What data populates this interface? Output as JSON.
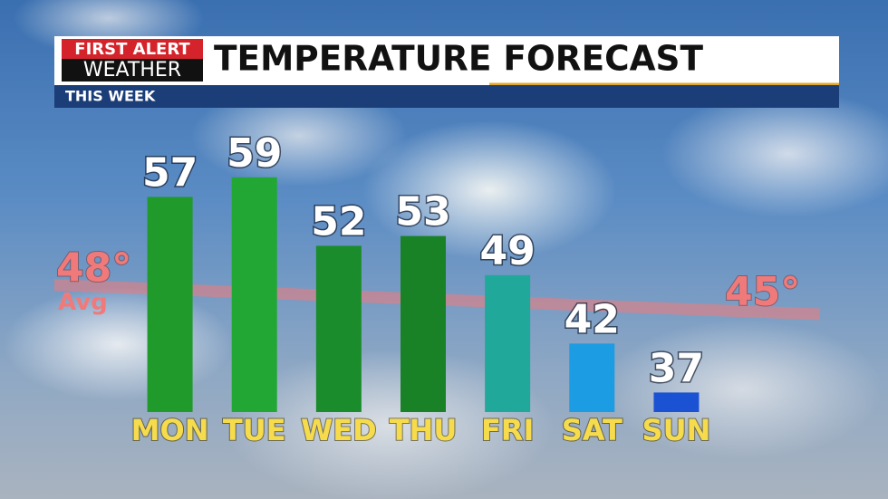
{
  "header": {
    "logo_top": "FIRST ALERT",
    "logo_bottom": "WEATHER",
    "title": "TEMPERATURE FORECAST",
    "subtitle": "THIS WEEK"
  },
  "chart_data": {
    "type": "bar",
    "categories": [
      "MON",
      "TUE",
      "WED",
      "THU",
      "FRI",
      "SAT",
      "SUN"
    ],
    "values": [
      57,
      59,
      52,
      53,
      49,
      42,
      37
    ],
    "colors": [
      "#1f9a2b",
      "#22a734",
      "#1b8c2b",
      "#1a8226",
      "#20a89a",
      "#1c9ce2",
      "#1b52d4"
    ],
    "ylim": [
      35,
      60
    ],
    "avg_line": {
      "start": 48,
      "end": 45,
      "start_label": "48°",
      "label": "Avg",
      "end_label": "45°",
      "color": "#f07a7a"
    }
  }
}
